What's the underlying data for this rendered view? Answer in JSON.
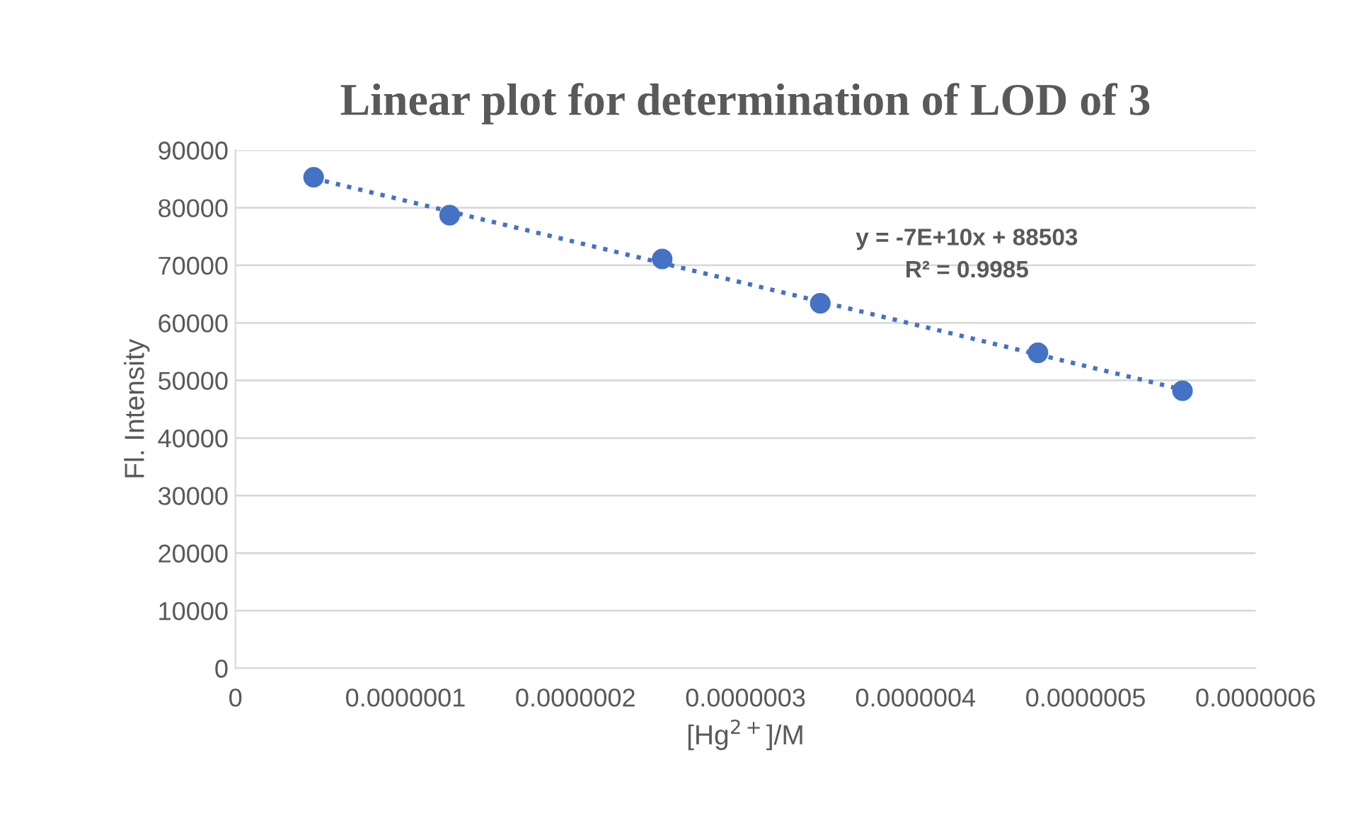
{
  "chart_data": {
    "type": "scatter",
    "title": "Linear plot for determination of LOD of 3",
    "xlabel": "[Hg$^{2+}$]/M",
    "ylabel": "Fl. Intensity",
    "series": [
      {
        "color": "#4472c4",
        "marker": "circle",
        "x": [
          4.6e-08,
          1.26e-07,
          2.51e-07,
          3.44e-07,
          4.72e-07,
          5.57e-07
        ],
        "values": [
          85300,
          78700,
          71100,
          63400,
          54800,
          48200
        ]
      },
      {
        "type": "line",
        "color": "#4472c4",
        "marker": "none",
        "line_style": "dotted",
        "x": [
          4.6e-08,
          5.57e-07
        ],
        "values": [
          85100,
          48400
        ]
      }
    ],
    "annotations": [
      "y = -7E+10x + 88503\nR² = 0.9985"
    ],
    "xlim": [
      0,
      6e-07
    ],
    "ylim": [
      0,
      90000
    ],
    "xticks": [
      0,
      {
        "value": 1e-07,
        "label": "0.0000001"
      },
      {
        "value": 2e-07,
        "label": "0.0000002"
      },
      {
        "value": 3e-07,
        "label": "0.0000003"
      },
      {
        "value": 4e-07,
        "label": "0.0000004"
      },
      {
        "value": 5e-07,
        "label": "0.0000005"
      },
      {
        "value": 6e-07,
        "label": "0.0000006"
      }
    ],
    "yticks": [
      0,
      10000,
      20000,
      30000,
      40000,
      50000,
      60000,
      70000,
      80000,
      90000
    ],
    "grid": "y",
    "legend": false
  }
}
